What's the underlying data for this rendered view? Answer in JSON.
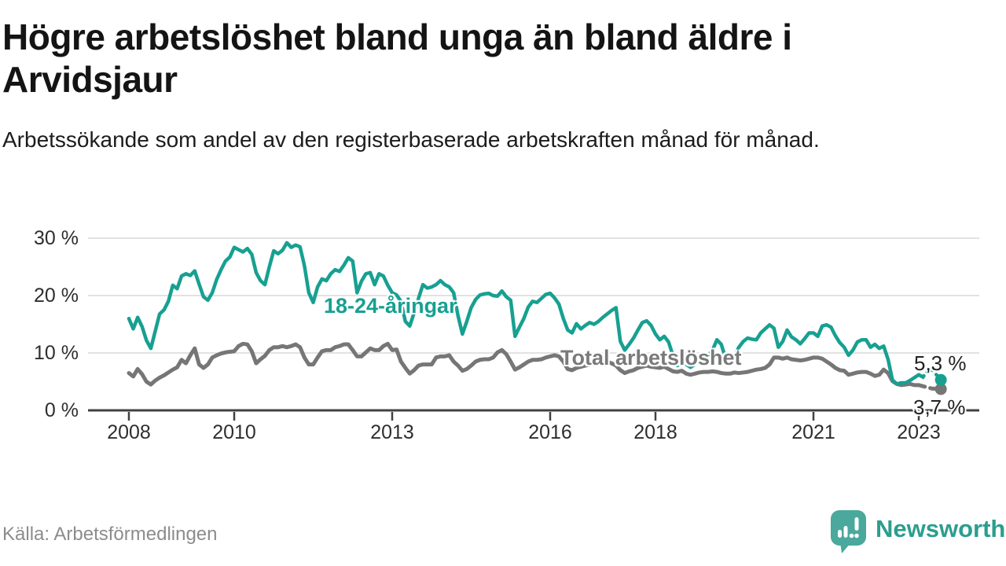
{
  "header": {
    "title": "Högre arbetslöshet bland unga än bland äldre i Arvidsjaur",
    "subtitle": "Arbetssökande som andel av den registerbaserade arbetskraften månad för månad."
  },
  "chart_data": {
    "type": "line",
    "unit": "%",
    "grid": "horizontal",
    "x_axis": {
      "ticks": [
        2008,
        2010,
        2013,
        2016,
        2018,
        2021,
        2023
      ],
      "labels": [
        "2008",
        "2010",
        "2013",
        "2016",
        "2018",
        "2021",
        "2023"
      ],
      "range": [
        2007.8,
        2023.7
      ]
    },
    "y_axis": {
      "ticks": [
        0,
        10,
        20,
        30
      ],
      "labels": [
        "0 %",
        "10 %",
        "20 %",
        "30 %"
      ],
      "range": [
        0,
        31
      ]
    },
    "start_year": 2008,
    "frequency": "monthly",
    "series": [
      {
        "name": "18-24-åringar",
        "color": "#17a091",
        "end_label": "5,3 %",
        "end_value": 5.3,
        "values": [
          16.0,
          14.2,
          16.2,
          14.6,
          12.2,
          10.8,
          13.8,
          16.8,
          17.5,
          19.0,
          21.8,
          21.2,
          23.4,
          23.8,
          23.5,
          24.3,
          22.0,
          19.8,
          19.2,
          20.5,
          22.8,
          24.5,
          26.0,
          26.7,
          28.4,
          28.0,
          27.6,
          28.2,
          27.2,
          24.0,
          22.6,
          21.9,
          25.0,
          27.8,
          27.3,
          27.9,
          29.2,
          28.4,
          28.8,
          28.5,
          25.2,
          20.5,
          18.8,
          21.5,
          22.9,
          22.6,
          23.8,
          24.5,
          24.2,
          25.3,
          26.6,
          26.0,
          20.5,
          22.5,
          23.8,
          24.0,
          21.9,
          23.8,
          23.4,
          21.8,
          20.5,
          20.1,
          19.0,
          15.5,
          14.7,
          17.0,
          19.5,
          21.9,
          21.3,
          21.5,
          21.9,
          22.6,
          21.9,
          21.5,
          20.5,
          16.5,
          13.3,
          15.5,
          17.9,
          19.3,
          20.1,
          20.3,
          20.4,
          20.0,
          19.9,
          20.8,
          19.8,
          19.2,
          12.9,
          14.5,
          16.0,
          18.0,
          19.0,
          18.8,
          19.5,
          20.2,
          20.4,
          19.6,
          18.5,
          16.0,
          14.0,
          13.5,
          15.1,
          14.2,
          14.8,
          15.3,
          15.0,
          15.5,
          16.2,
          16.8,
          17.4,
          17.9,
          12.0,
          10.5,
          11.5,
          12.6,
          14.0,
          15.3,
          15.6,
          14.8,
          13.3,
          12.3,
          12.9,
          11.9,
          9.5,
          7.8,
          8.2,
          8.0,
          7.5,
          8.0,
          8.5,
          8.8,
          9.5,
          10.5,
          12.3,
          11.5,
          9.0,
          8.5,
          9.5,
          11.0,
          12.0,
          12.6,
          12.4,
          12.3,
          13.5,
          14.2,
          14.9,
          14.3,
          11.0,
          12.0,
          14.0,
          12.8,
          12.3,
          11.6,
          12.5,
          13.5,
          13.5,
          12.9,
          14.7,
          14.9,
          14.5,
          13.0,
          11.8,
          11.0,
          9.6,
          10.5,
          11.9,
          12.3,
          12.3,
          11.0,
          11.5,
          10.8,
          11.2,
          8.9,
          5.3,
          4.6,
          4.8,
          4.8,
          5.2,
          5.7,
          6.2
        ],
        "projection_dashed": [
          [
            2023.0,
            6.2
          ],
          [
            2023.08,
            5.8
          ],
          [
            2023.17,
            6.9
          ],
          [
            2023.25,
            7.1
          ],
          [
            2023.42,
            5.3
          ]
        ]
      },
      {
        "name": "Total arbetslöshet",
        "color": "#767676",
        "end_label": "3,7 %",
        "end_value": 3.7,
        "values": [
          6.5,
          5.9,
          7.2,
          6.3,
          5.0,
          4.5,
          5.2,
          5.7,
          6.1,
          6.6,
          7.1,
          7.5,
          8.8,
          8.2,
          9.6,
          10.8,
          8.0,
          7.4,
          8.0,
          9.2,
          9.6,
          9.9,
          10.1,
          10.2,
          10.3,
          11.2,
          11.6,
          11.5,
          10.3,
          8.2,
          8.9,
          9.5,
          10.5,
          11.0,
          11.0,
          11.2,
          11.0,
          11.2,
          11.5,
          11.0,
          9.2,
          8.0,
          8.0,
          9.2,
          10.3,
          10.5,
          10.5,
          11.0,
          11.2,
          11.5,
          11.5,
          10.5,
          9.4,
          9.4,
          10.1,
          10.8,
          10.5,
          10.5,
          11.2,
          11.6,
          10.5,
          10.6,
          8.5,
          7.4,
          6.4,
          7.0,
          7.8,
          8.0,
          8.0,
          8.0,
          9.2,
          9.4,
          9.4,
          9.6,
          8.5,
          7.8,
          6.9,
          7.2,
          7.8,
          8.5,
          8.8,
          8.9,
          8.9,
          9.2,
          10.1,
          10.5,
          9.8,
          8.5,
          7.1,
          7.5,
          8.0,
          8.5,
          8.8,
          8.8,
          8.9,
          9.2,
          9.4,
          9.6,
          9.4,
          8.5,
          7.2,
          7.0,
          7.4,
          7.6,
          7.8,
          8.0,
          8.2,
          8.2,
          8.4,
          8.5,
          8.2,
          7.8,
          7.0,
          6.5,
          6.8,
          7.0,
          7.4,
          7.6,
          7.8,
          7.6,
          7.5,
          7.4,
          7.6,
          7.2,
          6.8,
          6.7,
          6.9,
          6.4,
          6.2,
          6.4,
          6.6,
          6.7,
          6.7,
          6.8,
          6.7,
          6.5,
          6.4,
          6.4,
          6.6,
          6.5,
          6.6,
          6.7,
          6.9,
          7.1,
          7.2,
          7.4,
          8.0,
          9.2,
          9.2,
          9.0,
          9.2,
          8.9,
          8.8,
          8.7,
          8.8,
          9.0,
          9.2,
          9.2,
          9.0,
          8.5,
          8.0,
          7.4,
          7.0,
          6.9,
          6.2,
          6.4,
          6.6,
          6.7,
          6.7,
          6.4,
          6.0,
          6.2,
          7.1,
          6.5,
          5.1,
          4.6,
          4.4,
          4.5,
          4.6,
          4.4,
          4.4
        ],
        "projection_dashed": [
          [
            2023.0,
            4.4
          ],
          [
            2023.08,
            4.2
          ],
          [
            2023.17,
            4.0
          ],
          [
            2023.25,
            3.8
          ],
          [
            2023.42,
            3.7
          ]
        ]
      }
    ]
  },
  "footer": {
    "source": "Källa: Arbetsförmedlingen",
    "brand": "Newsworthy",
    "brand_icon": "speech-bubble-bar-chart-icon",
    "brand_color": "#2b9e8f"
  }
}
